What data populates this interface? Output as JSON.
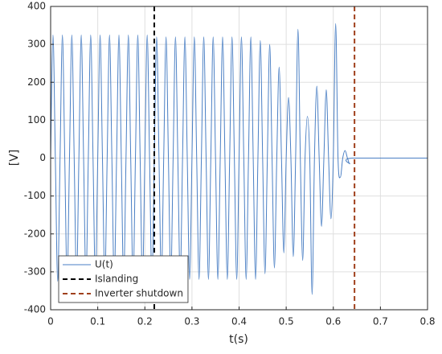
{
  "chart_data": {
    "type": "line",
    "xlabel": "t(s)",
    "ylabel": "[V]",
    "xlim": [
      0,
      0.8
    ],
    "xticks": [
      0,
      0.1,
      0.2,
      0.3,
      0.4,
      0.5,
      0.6,
      0.7,
      0.8
    ],
    "ylim": [
      -400,
      400
    ],
    "yticks": [
      -400,
      -300,
      -200,
      -100,
      0,
      100,
      200,
      300,
      400
    ],
    "grid": true,
    "legend": "lower left",
    "x": [
      0,
      0.005,
      0.01,
      0.015,
      0.02,
      0.025,
      0.03,
      0.035,
      0.04,
      0.045,
      0.05,
      0.055,
      0.06,
      0.065,
      0.07,
      0.075,
      0.08,
      0.085,
      0.09,
      0.095,
      0.1,
      0.105,
      0.11,
      0.115,
      0.12,
      0.125,
      0.13,
      0.135,
      0.14,
      0.145,
      0.15,
      0.155,
      0.16,
      0.165,
      0.17,
      0.175,
      0.18,
      0.185,
      0.19,
      0.195,
      0.2,
      0.205,
      0.21,
      0.215,
      0.22,
      0.225,
      0.23,
      0.235,
      0.24,
      0.245,
      0.25,
      0.255,
      0.26,
      0.265,
      0.27,
      0.275,
      0.28,
      0.285,
      0.29,
      0.295,
      0.3,
      0.305,
      0.31,
      0.315,
      0.32,
      0.325,
      0.33,
      0.335,
      0.34,
      0.345,
      0.35,
      0.355,
      0.36,
      0.365,
      0.37,
      0.375,
      0.38,
      0.385,
      0.39,
      0.395,
      0.4,
      0.405,
      0.41,
      0.415,
      0.42,
      0.425,
      0.43,
      0.435,
      0.44,
      0.445,
      0.45,
      0.455,
      0.46,
      0.465,
      0.47,
      0.475,
      0.48,
      0.485,
      0.49,
      0.495,
      0.5,
      0.505,
      0.51,
      0.515,
      0.52,
      0.525,
      0.53,
      0.535,
      0.54,
      0.545,
      0.55,
      0.555,
      0.56,
      0.565,
      0.57,
      0.575,
      0.58,
      0.585,
      0.59,
      0.595,
      0.6,
      0.605,
      0.61,
      0.615,
      0.62,
      0.625,
      0.63,
      0.635,
      0.64,
      0.8
    ],
    "series": [
      {
        "name": "U(t)",
        "color": "#4a7fc4",
        "values": [
          0,
          325,
          0,
          -325,
          0,
          325,
          0,
          -325,
          0,
          325,
          0,
          -325,
          0,
          325,
          0,
          -325,
          0,
          325,
          0,
          -325,
          0,
          325,
          0,
          -325,
          0,
          325,
          0,
          -325,
          0,
          325,
          0,
          -325,
          0,
          325,
          0,
          -325,
          0,
          325,
          0,
          -325,
          0,
          325,
          0,
          -325,
          0,
          320,
          0,
          -320,
          0,
          320,
          0,
          -320,
          0,
          320,
          0,
          -320,
          0,
          320,
          0,
          -320,
          0,
          320,
          0,
          -320,
          0,
          320,
          0,
          -320,
          0,
          320,
          0,
          -320,
          0,
          320,
          0,
          -320,
          0,
          320,
          0,
          -320,
          0,
          320,
          0,
          -320,
          0,
          320,
          0,
          -320,
          0,
          310,
          0,
          -305,
          0,
          300,
          0,
          -290,
          0,
          240,
          0,
          -250,
          0,
          160,
          0,
          -260,
          0,
          340,
          0,
          -270,
          0,
          110,
          0,
          -360,
          0,
          190,
          0,
          -180,
          0,
          180,
          0,
          -160,
          0,
          355,
          0,
          -50,
          0,
          20,
          0,
          -15,
          0,
          0
        ]
      }
    ],
    "vlines": [
      {
        "name": "Islanding",
        "x": 0.22,
        "color": "#000000"
      },
      {
        "name": "Inverter shutdown",
        "x": 0.645,
        "color": "#a0401c"
      }
    ]
  }
}
